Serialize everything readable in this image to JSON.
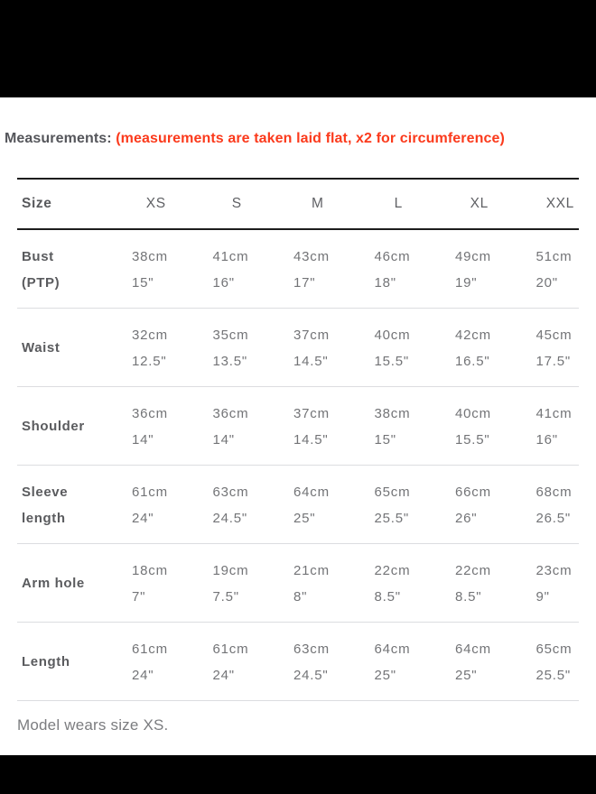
{
  "page": {
    "background": "#ffffff",
    "top_bar_color": "#000000",
    "bottom_bar_color": "#000000"
  },
  "heading": {
    "label": "Measurements:",
    "note": "(measurements are taken laid flat, x2 for circumference)",
    "note_color": "#fb3a1c"
  },
  "size_chart": {
    "columns": [
      "Size",
      "XS",
      "S",
      "M",
      "L",
      "XL",
      "XXL"
    ],
    "rows": [
      {
        "label_line1": "Bust",
        "label_line2": "(PTP)",
        "cells": [
          {
            "cm": "38cm",
            "in": "15\""
          },
          {
            "cm": "41cm",
            "in": "16\""
          },
          {
            "cm": "43cm",
            "in": "17\""
          },
          {
            "cm": "46cm",
            "in": "18\""
          },
          {
            "cm": "49cm",
            "in": "19\""
          },
          {
            "cm": "51cm",
            "in": "20\""
          }
        ]
      },
      {
        "label_line1": "Waist",
        "label_line2": "",
        "cells": [
          {
            "cm": "32cm",
            "in": "12.5\""
          },
          {
            "cm": "35cm",
            "in": "13.5\""
          },
          {
            "cm": "37cm",
            "in": "14.5\""
          },
          {
            "cm": "40cm",
            "in": "15.5\""
          },
          {
            "cm": "42cm",
            "in": "16.5\""
          },
          {
            "cm": "45cm",
            "in": "17.5\""
          }
        ]
      },
      {
        "label_line1": "Shoulder",
        "label_line2": "",
        "cells": [
          {
            "cm": "36cm",
            "in": "14\""
          },
          {
            "cm": "36cm",
            "in": "14\""
          },
          {
            "cm": "37cm",
            "in": "14.5\""
          },
          {
            "cm": "38cm",
            "in": "15\""
          },
          {
            "cm": "40cm",
            "in": "15.5\""
          },
          {
            "cm": "41cm",
            "in": "16\""
          }
        ]
      },
      {
        "label_line1": "Sleeve",
        "label_line2": "length",
        "cells": [
          {
            "cm": "61cm",
            "in": "24\""
          },
          {
            "cm": "63cm",
            "in": "24.5\""
          },
          {
            "cm": "64cm",
            "in": "25\""
          },
          {
            "cm": "65cm",
            "in": "25.5\""
          },
          {
            "cm": "66cm",
            "in": "26\""
          },
          {
            "cm": "68cm",
            "in": "26.5\""
          }
        ]
      },
      {
        "label_line1": "Arm hole",
        "label_line2": "",
        "cells": [
          {
            "cm": "18cm",
            "in": "7\""
          },
          {
            "cm": "19cm",
            "in": "7.5\""
          },
          {
            "cm": "21cm",
            "in": "8\""
          },
          {
            "cm": "22cm",
            "in": "8.5\""
          },
          {
            "cm": "22cm",
            "in": "8.5\""
          },
          {
            "cm": "23cm",
            "in": "9\""
          }
        ]
      },
      {
        "label_line1": "Length",
        "label_line2": "",
        "cells": [
          {
            "cm": "61cm",
            "in": "24\""
          },
          {
            "cm": "61cm",
            "in": "24\""
          },
          {
            "cm": "63cm",
            "in": "24.5\""
          },
          {
            "cm": "64cm",
            "in": "25\""
          },
          {
            "cm": "64cm",
            "in": "25\""
          },
          {
            "cm": "65cm",
            "in": "25.5\""
          }
        ]
      }
    ]
  },
  "footer": {
    "note": "Model wears size XS."
  }
}
